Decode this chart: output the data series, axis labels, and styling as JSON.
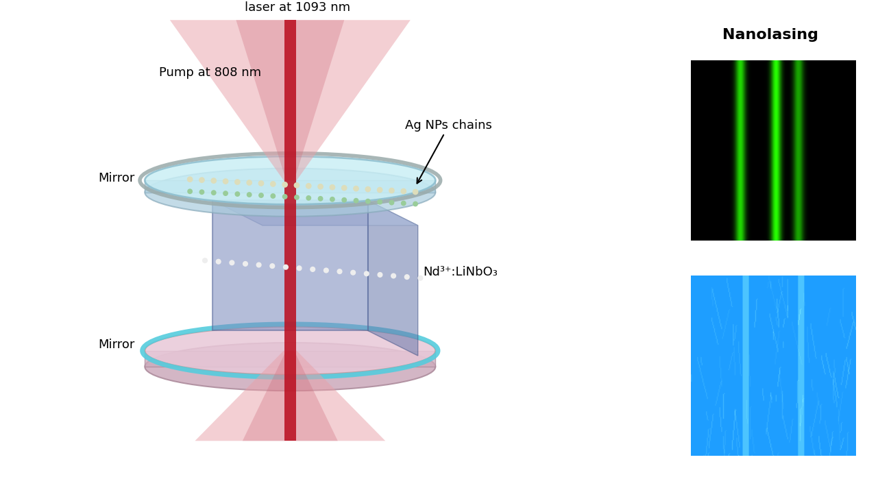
{
  "bg_color": "#ffffff",
  "label_laser": "laser at 1093 nm",
  "label_pump": "Pump at 808 nm",
  "label_mirror_top": "Mirror",
  "label_mirror_bottom": "Mirror",
  "label_ag_nps": "Ag NPs chains",
  "label_nd": "Nd³⁺:LiNbO₃",
  "label_nanolasing": "Nanolasing",
  "nanolasing_title_fontsize": 16,
  "label_fontsize": 13
}
